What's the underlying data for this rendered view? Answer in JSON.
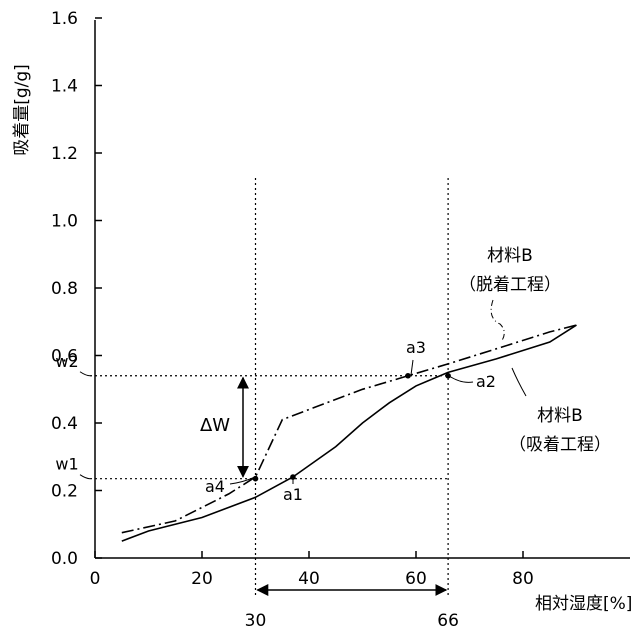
{
  "chart_data": {
    "type": "line",
    "ylabel": "吸着量[g/g]",
    "xlabel": "相対湿度[%]",
    "xlim": [
      0,
      100
    ],
    "ylim": [
      0,
      1.6
    ],
    "x_ticks": [
      0,
      20,
      40,
      60,
      80
    ],
    "y_ticks": [
      0.0,
      0.2,
      0.4,
      0.6,
      0.8,
      1.0,
      1.2,
      1.4,
      1.6
    ],
    "series": [
      {
        "name": "材料B（吸着工程）",
        "label_lines": [
          "材料B",
          "（吸着工程）"
        ],
        "style": "solid",
        "x": [
          5,
          10,
          20,
          30,
          37,
          45,
          50,
          55,
          60,
          66,
          75,
          85,
          90
        ],
        "y": [
          0.05,
          0.08,
          0.12,
          0.18,
          0.24,
          0.33,
          0.4,
          0.46,
          0.51,
          0.55,
          0.59,
          0.64,
          0.69
        ]
      },
      {
        "name": "材料B（脱着工程）",
        "label_lines": [
          "材料B",
          "（脱着工程）"
        ],
        "style": "dash-dot",
        "x": [
          5,
          15,
          25,
          30,
          35,
          40,
          50,
          58.5,
          66,
          75,
          85,
          90
        ],
        "y": [
          0.075,
          0.11,
          0.19,
          0.24,
          0.41,
          0.44,
          0.5,
          0.54,
          0.575,
          0.62,
          0.67,
          0.69
        ]
      }
    ],
    "reference_lines": {
      "vertical": [
        {
          "x": 30,
          "label": "30"
        },
        {
          "x": 66,
          "label": "66"
        }
      ],
      "horizontal": [
        {
          "y": 0.235,
          "label": "w1"
        },
        {
          "y": 0.54,
          "label": "w2"
        }
      ]
    },
    "points": [
      {
        "label": "a1",
        "x": 37,
        "y": 0.24
      },
      {
        "label": "a2",
        "x": 66,
        "y": 0.54
      },
      {
        "label": "a3",
        "x": 58.5,
        "y": 0.54
      },
      {
        "label": "a4",
        "x": 30,
        "y": 0.235
      }
    ],
    "annotations": {
      "delta_w": "ΔW"
    },
    "grid": false
  }
}
